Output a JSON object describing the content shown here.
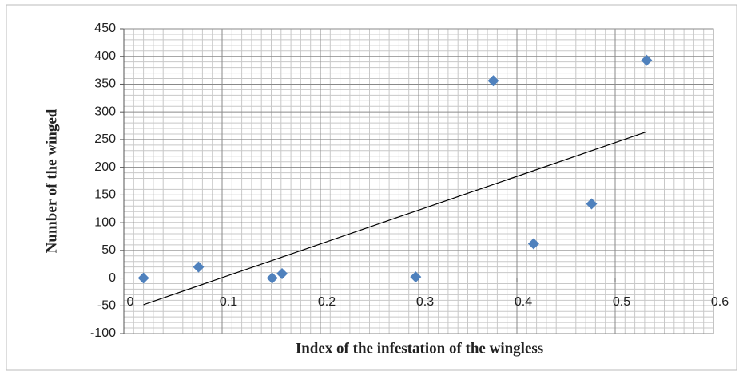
{
  "chart_data": {
    "type": "scatter",
    "x_label": "Index of the infestation of the wingless",
    "y_label": "Number  of the winged",
    "series": [
      {
        "color": "#4f81bd",
        "x": [
          0.02,
          0.076,
          0.151,
          0.161,
          0.297,
          0.376,
          0.417,
          0.476,
          0.532
        ],
        "values": [
          0,
          20,
          0,
          8,
          2,
          356,
          62,
          134,
          393
        ]
      }
    ],
    "trendline": {
      "color": "#000000",
      "x": [
        0.02,
        0.532
      ],
      "values": [
        -48,
        264
      ]
    },
    "xlim": [
      0,
      0.6
    ],
    "xticks": [
      0,
      0.1,
      0.2,
      0.3,
      0.4,
      0.5,
      0.6
    ],
    "ylim": [
      -100,
      450
    ],
    "yticks": [
      -100,
      -50,
      0,
      50,
      100,
      150,
      200,
      250,
      300,
      350,
      400,
      450
    ],
    "grid": true
  }
}
